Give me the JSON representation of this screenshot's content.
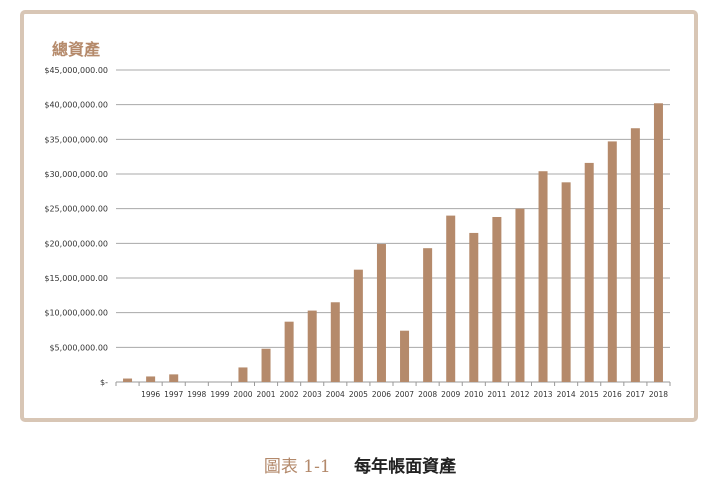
{
  "chart_data": {
    "type": "bar",
    "title": "總資產",
    "categories": [
      "",
      "1996",
      "1997",
      "1998",
      "1999",
      "2000",
      "2001",
      "2002",
      "2003",
      "2004",
      "2005",
      "2006",
      "2007",
      "2008",
      "2009",
      "2010",
      "2011",
      "2012",
      "2013",
      "2014",
      "2015",
      "2016",
      "2017",
      "2018"
    ],
    "values": [
      500000,
      800000,
      1100000,
      0,
      0,
      2100000,
      4800000,
      8700000,
      10300000,
      11500000,
      16200000,
      19900000,
      7400000,
      19300000,
      24000000,
      21500000,
      23800000,
      25000000,
      30400000,
      28800000,
      31600000,
      34700000,
      36600000,
      40200000
    ],
    "ylim": [
      0,
      45000000
    ],
    "y_ticks": [
      0,
      5000000,
      10000000,
      15000000,
      20000000,
      25000000,
      30000000,
      35000000,
      40000000,
      45000000
    ],
    "y_tick_labels": [
      "$-",
      "$5,000,000.00",
      "$10,000,000.00",
      "$15,000,000.00",
      "$20,000,000.00",
      "$25,000,000.00",
      "$30,000,000.00",
      "$35,000,000.00",
      "$40,000,000.00",
      "$45,000,000.00"
    ],
    "bar_color": "#b58a6b",
    "grid": true,
    "xlabel": "",
    "ylabel": ""
  },
  "caption": {
    "number": "圖表 1-1",
    "text": "每年帳面資產"
  }
}
